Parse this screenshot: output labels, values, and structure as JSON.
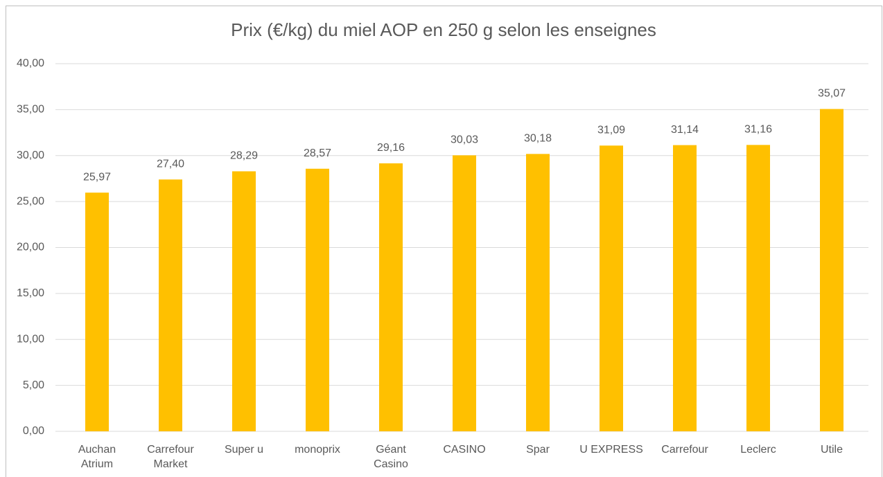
{
  "chart_data": {
    "type": "bar",
    "title": "Prix (€/kg) du miel AOP en 250 g selon les enseignes",
    "categories": [
      "Auchan\nAtrium",
      "Carrefour\nMarket",
      "Super u",
      "monoprix",
      "Géant\nCasino",
      "CASINO",
      "Spar",
      "U EXPRESS",
      "Carrefour",
      "Leclerc",
      "Utile"
    ],
    "values": [
      25.97,
      27.4,
      28.29,
      28.57,
      29.16,
      30.03,
      30.18,
      31.09,
      31.14,
      31.16,
      35.07
    ],
    "value_labels": [
      "25,97",
      "27,40",
      "28,29",
      "28,57",
      "29,16",
      "30,03",
      "30,18",
      "31,09",
      "31,14",
      "31,16",
      "35,07"
    ],
    "color": "#ffc000",
    "ylim": [
      0,
      40
    ],
    "yticks": [
      {
        "value": 0,
        "label": "0,00"
      },
      {
        "value": 5,
        "label": "5,00"
      },
      {
        "value": 10,
        "label": "10,00"
      },
      {
        "value": 15,
        "label": "15,00"
      },
      {
        "value": 20,
        "label": "20,00"
      },
      {
        "value": 25,
        "label": "25,00"
      },
      {
        "value": 30,
        "label": "30,00"
      },
      {
        "value": 35,
        "label": "35,00"
      },
      {
        "value": 40,
        "label": "40,00"
      }
    ],
    "grid": true
  }
}
